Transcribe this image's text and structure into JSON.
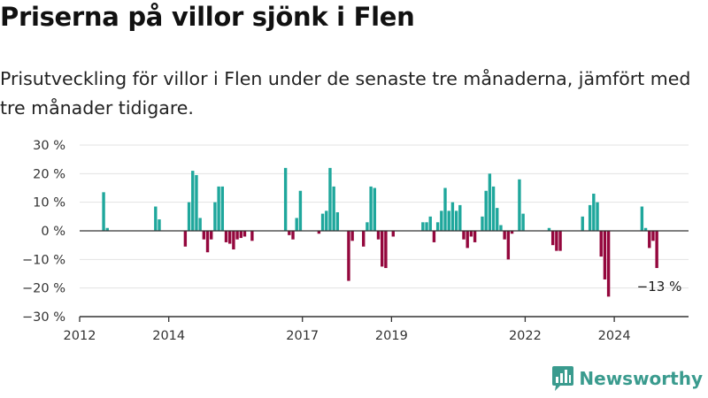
{
  "header": {
    "title": "Priserna på villor sjönk i Flen",
    "subtitle": "Prisutveckling för villor i Flen under de senaste tre månaderna, jämfört med tre månader tidigare."
  },
  "brand": {
    "name": "Newsworthy"
  },
  "colors": {
    "positive": "#1fa79c",
    "negative": "#94073d",
    "grid": "#e3e3e3",
    "axis": "#333333",
    "brand": "#3a9b8e"
  },
  "chart_data": {
    "type": "bar",
    "title": "",
    "xlabel": "",
    "ylabel": "",
    "x_start": "2012-01",
    "x_end": "2025-09",
    "ylim": [
      -30,
      30
    ],
    "yticks": [
      -30,
      -20,
      -10,
      0,
      10,
      20,
      30
    ],
    "ytick_labels": [
      "−30 %",
      "−20 %",
      "−10 %",
      "0 %",
      "10 %",
      "20 %",
      "30 %"
    ],
    "xticks": [
      "2012-01",
      "2014-01",
      "2017-01",
      "2019-01",
      "2022-01",
      "2024-01"
    ],
    "xtick_labels": [
      "2012",
      "2014",
      "2017",
      "2019",
      "2022",
      "2024"
    ],
    "grid": true,
    "annotation": {
      "label": "−13 %",
      "x": "2024-11",
      "y": -13
    },
    "series": [
      {
        "values": [
          [
            "2012-07",
            13.5
          ],
          [
            "2012-08",
            1
          ],
          [
            "2013-09",
            8.5
          ],
          [
            "2013-10",
            4
          ],
          [
            "2014-05",
            -5.5
          ],
          [
            "2014-06",
            10
          ],
          [
            "2014-07",
            21
          ],
          [
            "2014-08",
            19.5
          ],
          [
            "2014-09",
            4.5
          ],
          [
            "2014-10",
            -3
          ],
          [
            "2014-11",
            -7.5
          ],
          [
            "2014-12",
            -3
          ],
          [
            "2015-01",
            10
          ],
          [
            "2015-02",
            15.5
          ],
          [
            "2015-03",
            15.5
          ],
          [
            "2015-04",
            -4
          ],
          [
            "2015-05",
            -4.5
          ],
          [
            "2015-06",
            -6.5
          ],
          [
            "2015-07",
            -3
          ],
          [
            "2015-08",
            -2.5
          ],
          [
            "2015-09",
            -2
          ],
          [
            "2015-11",
            -3.5
          ],
          [
            "2016-08",
            22
          ],
          [
            "2016-09",
            -1.5
          ],
          [
            "2016-10",
            -3
          ],
          [
            "2016-11",
            4.5
          ],
          [
            "2016-12",
            14
          ],
          [
            "2017-05",
            -1
          ],
          [
            "2017-06",
            6
          ],
          [
            "2017-07",
            7
          ],
          [
            "2017-08",
            22
          ],
          [
            "2017-09",
            15.5
          ],
          [
            "2017-10",
            6.5
          ],
          [
            "2018-01",
            -17.5
          ],
          [
            "2018-02",
            -3.5
          ],
          [
            "2018-05",
            -5.5
          ],
          [
            "2018-06",
            3
          ],
          [
            "2018-07",
            15.5
          ],
          [
            "2018-08",
            15
          ],
          [
            "2018-09",
            -3
          ],
          [
            "2018-10",
            -12.5
          ],
          [
            "2018-11",
            -13
          ],
          [
            "2019-01",
            -2
          ],
          [
            "2019-09",
            3
          ],
          [
            "2019-10",
            3
          ],
          [
            "2019-11",
            5
          ],
          [
            "2019-12",
            -4
          ],
          [
            "2020-01",
            3
          ],
          [
            "2020-02",
            7
          ],
          [
            "2020-03",
            15
          ],
          [
            "2020-04",
            7
          ],
          [
            "2020-05",
            10
          ],
          [
            "2020-06",
            7
          ],
          [
            "2020-07",
            9
          ],
          [
            "2020-08",
            -3
          ],
          [
            "2020-09",
            -6
          ],
          [
            "2020-10",
            -2
          ],
          [
            "2020-11",
            -4
          ],
          [
            "2021-01",
            5
          ],
          [
            "2021-02",
            14
          ],
          [
            "2021-03",
            20
          ],
          [
            "2021-04",
            15.5
          ],
          [
            "2021-05",
            8
          ],
          [
            "2021-06",
            2
          ],
          [
            "2021-07",
            -3
          ],
          [
            "2021-08",
            -10
          ],
          [
            "2021-09",
            -1
          ],
          [
            "2021-11",
            18
          ],
          [
            "2021-12",
            6
          ],
          [
            "2022-07",
            1
          ],
          [
            "2022-08",
            -5
          ],
          [
            "2022-09",
            -7
          ],
          [
            "2022-10",
            -7
          ],
          [
            "2023-04",
            5
          ],
          [
            "2023-06",
            9
          ],
          [
            "2023-07",
            13
          ],
          [
            "2023-08",
            10
          ],
          [
            "2023-09",
            -9
          ],
          [
            "2023-10",
            -17
          ],
          [
            "2023-11",
            -23
          ],
          [
            "2024-08",
            8.5
          ],
          [
            "2024-09",
            1
          ],
          [
            "2024-10",
            -6
          ],
          [
            "2024-11",
            -3.5
          ],
          [
            "2024-12",
            -13
          ]
        ]
      }
    ]
  }
}
